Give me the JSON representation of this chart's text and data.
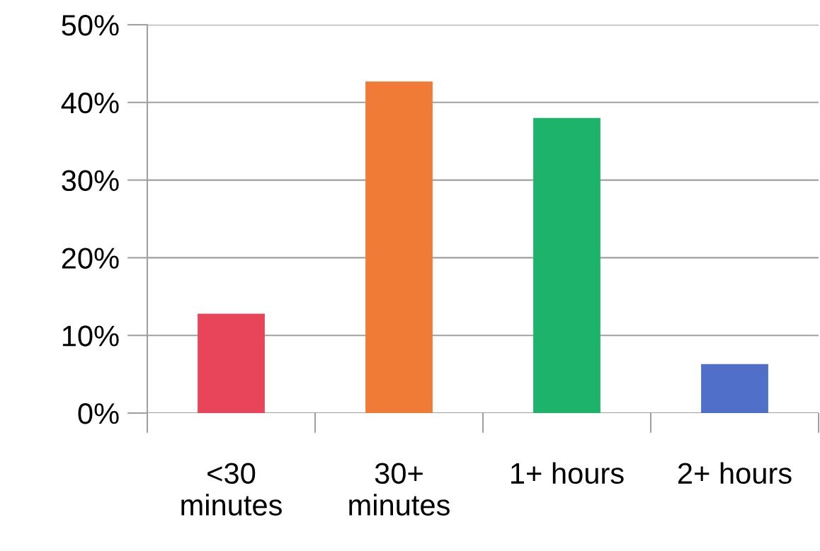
{
  "chart_data": {
    "type": "bar",
    "categories": [
      "<30\nminutes",
      "30+\nminutes",
      "1+ hours",
      "2+ hours"
    ],
    "values": [
      12.8,
      42.7,
      38.0,
      6.3
    ],
    "colors": [
      "#e8445a",
      "#f07b36",
      "#1db36b",
      "#4f6fc8"
    ],
    "ylim": [
      0,
      50
    ],
    "yticks": [
      {
        "value": 0,
        "label": "0%"
      },
      {
        "value": 10,
        "label": "10%"
      },
      {
        "value": 20,
        "label": "20%"
      },
      {
        "value": 30,
        "label": "30%"
      },
      {
        "value": 40,
        "label": "40%"
      },
      {
        "value": 50,
        "label": "50%"
      }
    ],
    "grid": "y",
    "legend": false
  }
}
